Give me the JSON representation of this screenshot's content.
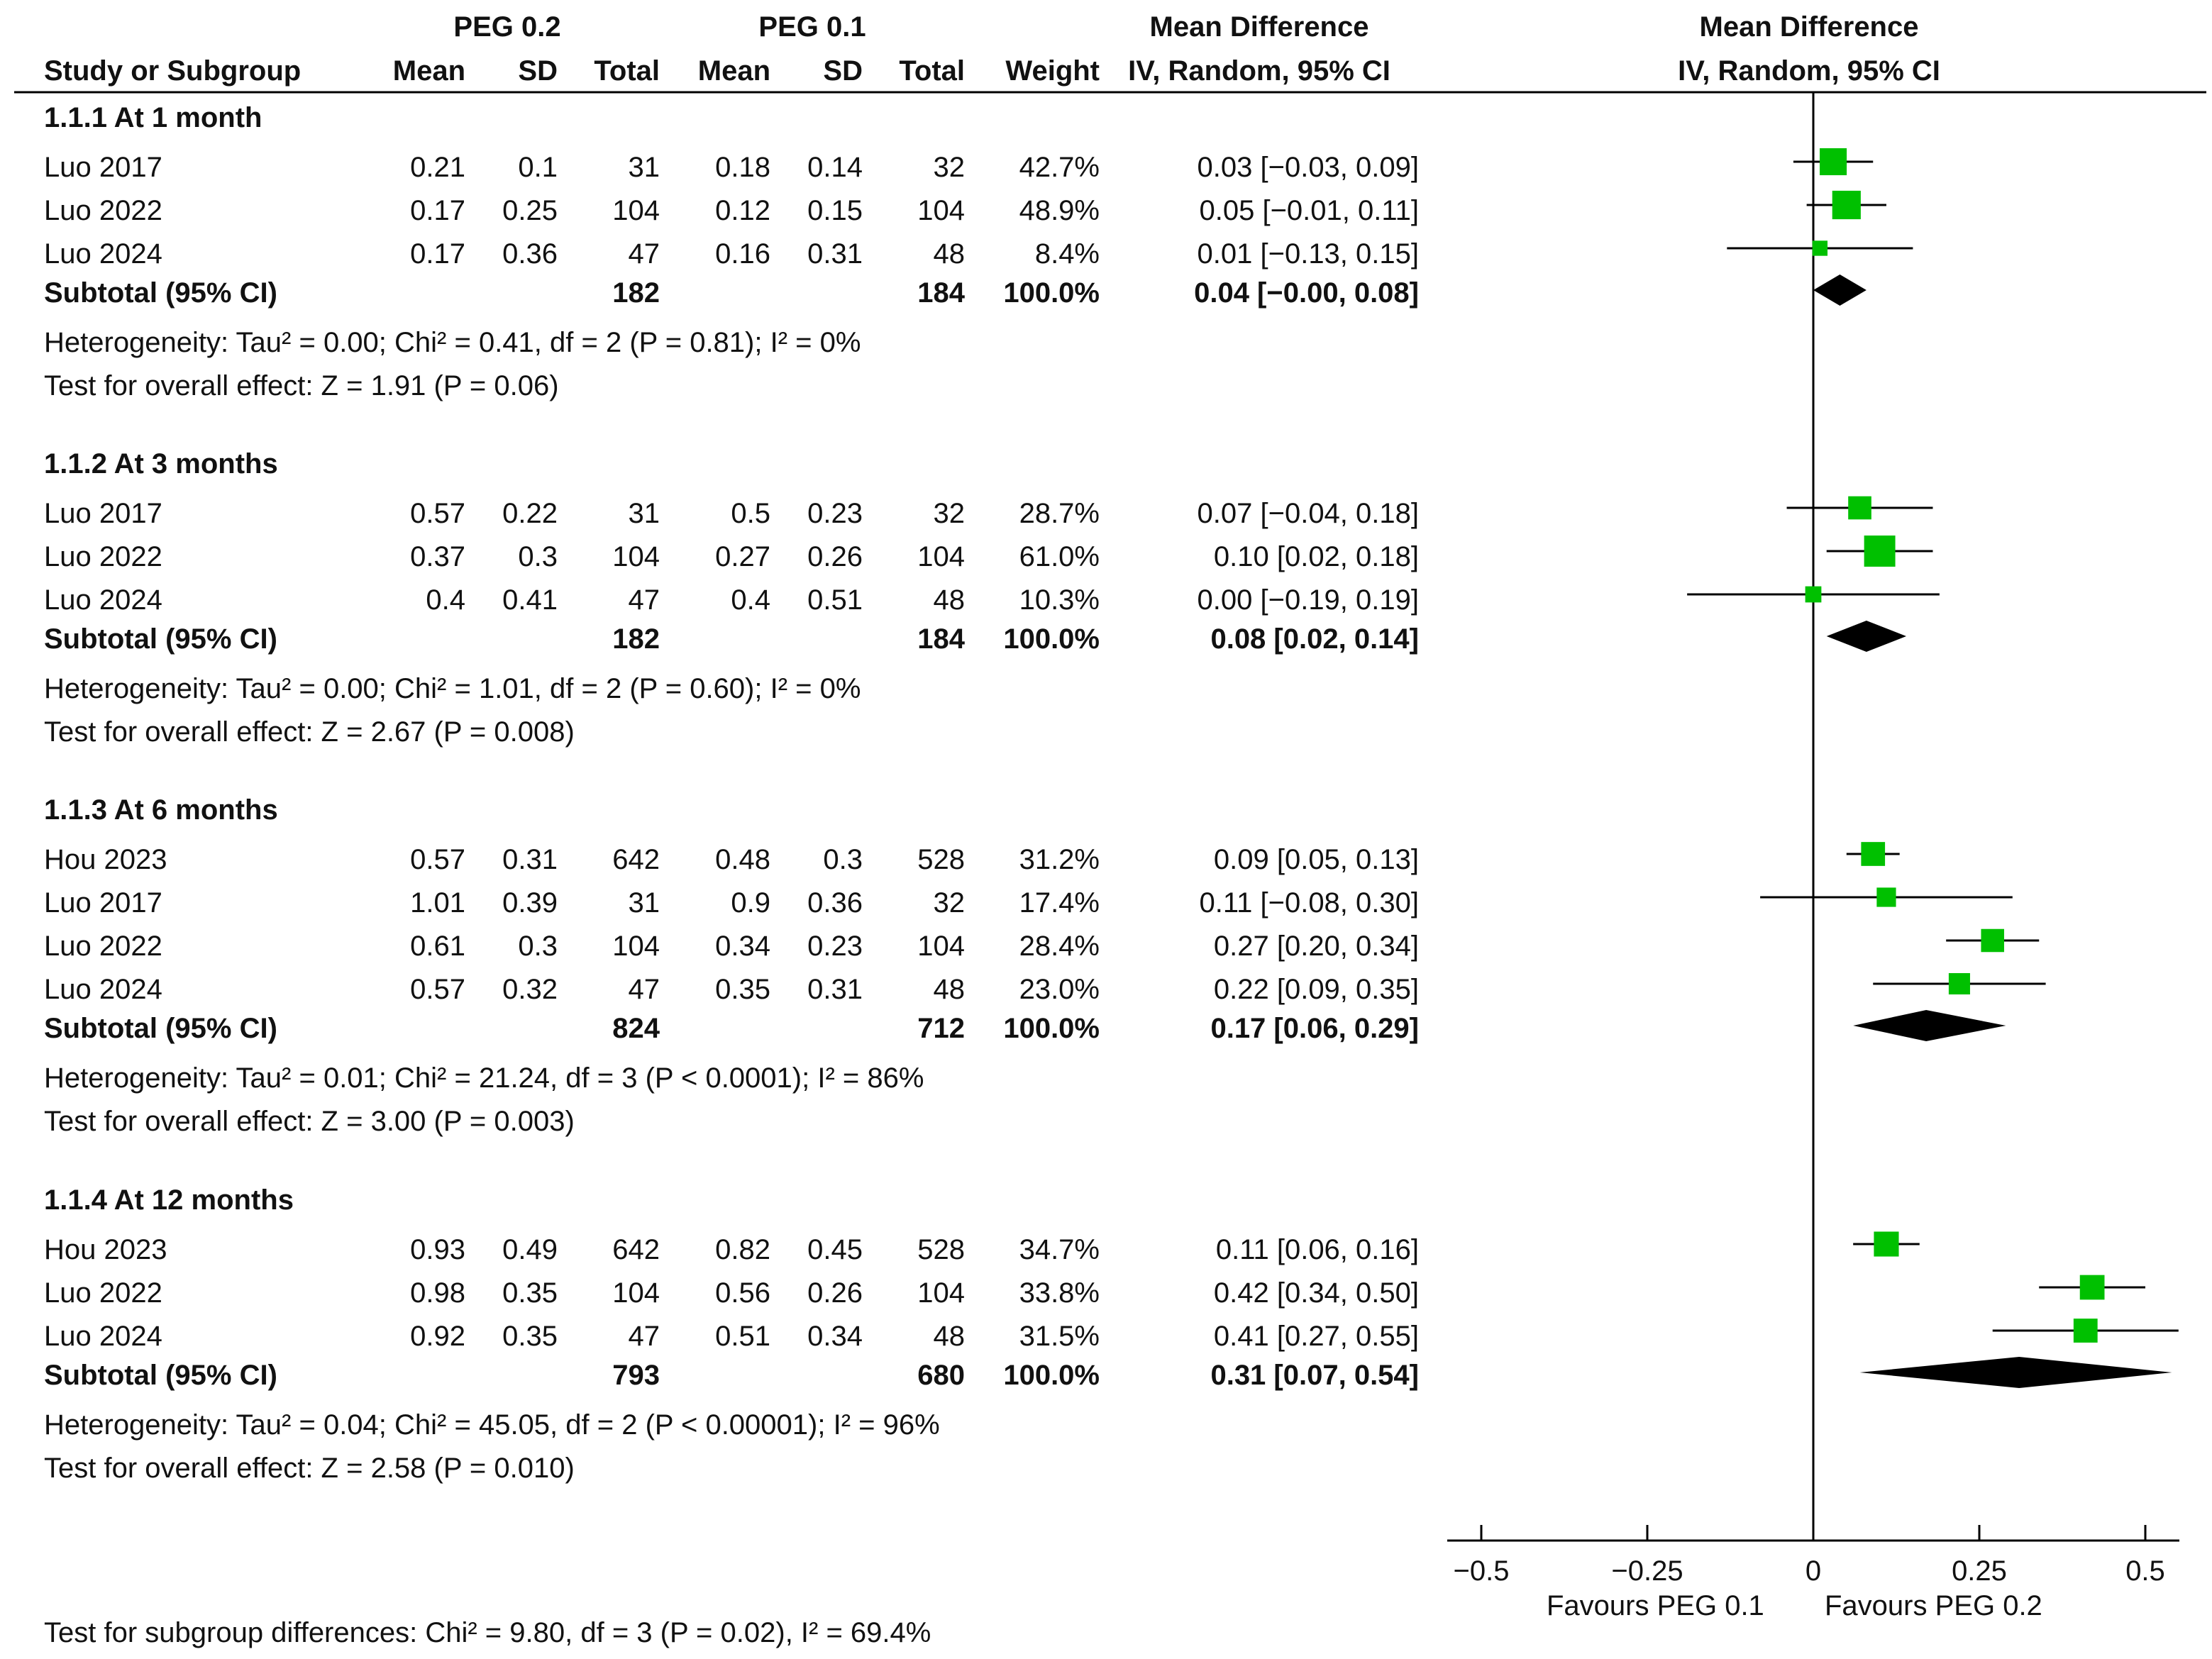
{
  "header": {
    "group_a": "PEG 0.2",
    "group_b": "PEG 0.1",
    "md_title_table": "Mean Difference",
    "md_method_table": "IV, Random, 95% CI",
    "md_title_plot": "Mean Difference",
    "md_method_plot": "IV, Random, 95% CI",
    "col_study": "Study or Subgroup",
    "col_mean_a": "Mean",
    "col_sd_a": "SD",
    "col_total_a": "Total",
    "col_mean_b": "Mean",
    "col_sd_b": "SD",
    "col_total_b": "Total",
    "col_weight": "Weight"
  },
  "subgroups": [
    {
      "title": "1.1.1 At 1 month",
      "rows": [
        {
          "study": "Luo 2017",
          "mean_a": "0.21",
          "sd_a": "0.1",
          "total_a": "31",
          "mean_b": "0.18",
          "sd_b": "0.14",
          "total_b": "32",
          "weight": "42.7%",
          "ci_text": "0.03 [−0.03, 0.09]"
        },
        {
          "study": "Luo 2022",
          "mean_a": "0.17",
          "sd_a": "0.25",
          "total_a": "104",
          "mean_b": "0.12",
          "sd_b": "0.15",
          "total_b": "104",
          "weight": "48.9%",
          "ci_text": "0.05 [−0.01, 0.11]"
        },
        {
          "study": "Luo 2024",
          "mean_a": "0.17",
          "sd_a": "0.36",
          "total_a": "47",
          "mean_b": "0.16",
          "sd_b": "0.31",
          "total_b": "48",
          "weight": "8.4%",
          "ci_text": "0.01 [−0.13, 0.15]"
        }
      ],
      "subtotal": {
        "label": "Subtotal (95% CI)",
        "total_a": "182",
        "total_b": "184",
        "weight": "100.0%",
        "ci_text": "0.04 [−0.00, 0.08]"
      },
      "heterogeneity": "Heterogeneity: Tau² = 0.00; Chi² = 0.41, df = 2 (P = 0.81); I² = 0%",
      "overall": "Test for overall effect: Z = 1.91 (P = 0.06)"
    },
    {
      "title": "1.1.2 At 3 months",
      "rows": [
        {
          "study": "Luo 2017",
          "mean_a": "0.57",
          "sd_a": "0.22",
          "total_a": "31",
          "mean_b": "0.5",
          "sd_b": "0.23",
          "total_b": "32",
          "weight": "28.7%",
          "ci_text": "0.07 [−0.04, 0.18]"
        },
        {
          "study": "Luo 2022",
          "mean_a": "0.37",
          "sd_a": "0.3",
          "total_a": "104",
          "mean_b": "0.27",
          "sd_b": "0.26",
          "total_b": "104",
          "weight": "61.0%",
          "ci_text": "0.10 [0.02, 0.18]"
        },
        {
          "study": "Luo 2024",
          "mean_a": "0.4",
          "sd_a": "0.41",
          "total_a": "47",
          "mean_b": "0.4",
          "sd_b": "0.51",
          "total_b": "48",
          "weight": "10.3%",
          "ci_text": "0.00 [−0.19, 0.19]"
        }
      ],
      "subtotal": {
        "label": "Subtotal (95% CI)",
        "total_a": "182",
        "total_b": "184",
        "weight": "100.0%",
        "ci_text": "0.08 [0.02, 0.14]"
      },
      "heterogeneity": "Heterogeneity: Tau² = 0.00; Chi² = 1.01, df = 2 (P = 0.60); I² = 0%",
      "overall": "Test for overall effect: Z = 2.67 (P = 0.008)"
    },
    {
      "title": "1.1.3 At 6 months",
      "rows": [
        {
          "study": "Hou 2023",
          "mean_a": "0.57",
          "sd_a": "0.31",
          "total_a": "642",
          "mean_b": "0.48",
          "sd_b": "0.3",
          "total_b": "528",
          "weight": "31.2%",
          "ci_text": "0.09 [0.05, 0.13]"
        },
        {
          "study": "Luo 2017",
          "mean_a": "1.01",
          "sd_a": "0.39",
          "total_a": "31",
          "mean_b": "0.9",
          "sd_b": "0.36",
          "total_b": "32",
          "weight": "17.4%",
          "ci_text": "0.11 [−0.08, 0.30]"
        },
        {
          "study": "Luo 2022",
          "mean_a": "0.61",
          "sd_a": "0.3",
          "total_a": "104",
          "mean_b": "0.34",
          "sd_b": "0.23",
          "total_b": "104",
          "weight": "28.4%",
          "ci_text": "0.27 [0.20, 0.34]"
        },
        {
          "study": "Luo 2024",
          "mean_a": "0.57",
          "sd_a": "0.32",
          "total_a": "47",
          "mean_b": "0.35",
          "sd_b": "0.31",
          "total_b": "48",
          "weight": "23.0%",
          "ci_text": "0.22 [0.09, 0.35]"
        }
      ],
      "subtotal": {
        "label": "Subtotal (95% CI)",
        "total_a": "824",
        "total_b": "712",
        "weight": "100.0%",
        "ci_text": "0.17 [0.06, 0.29]"
      },
      "heterogeneity": "Heterogeneity: Tau² = 0.01; Chi² = 21.24, df = 3 (P < 0.0001); I² = 86%",
      "overall": "Test for overall effect: Z = 3.00 (P = 0.003)"
    },
    {
      "title": "1.1.4 At 12 months",
      "rows": [
        {
          "study": "Hou 2023",
          "mean_a": "0.93",
          "sd_a": "0.49",
          "total_a": "642",
          "mean_b": "0.82",
          "sd_b": "0.45",
          "total_b": "528",
          "weight": "34.7%",
          "ci_text": "0.11 [0.06, 0.16]"
        },
        {
          "study": "Luo 2022",
          "mean_a": "0.98",
          "sd_a": "0.35",
          "total_a": "104",
          "mean_b": "0.56",
          "sd_b": "0.26",
          "total_b": "104",
          "weight": "33.8%",
          "ci_text": "0.42 [0.34, 0.50]"
        },
        {
          "study": "Luo 2024",
          "mean_a": "0.92",
          "sd_a": "0.35",
          "total_a": "47",
          "mean_b": "0.51",
          "sd_b": "0.34",
          "total_b": "48",
          "weight": "31.5%",
          "ci_text": "0.41 [0.27, 0.55]"
        }
      ],
      "subtotal": {
        "label": "Subtotal (95% CI)",
        "total_a": "793",
        "total_b": "680",
        "weight": "100.0%",
        "ci_text": "0.31 [0.07, 0.54]"
      },
      "heterogeneity": "Heterogeneity: Tau² = 0.04; Chi² = 45.05, df = 2 (P < 0.00001); I² = 96%",
      "overall": "Test for overall effect: Z = 2.58 (P = 0.010)"
    }
  ],
  "subgroup_test": "Test for subgroup differences: Chi² = 9.80, df = 3 (P = 0.02), I² = 69.4%",
  "axis": {
    "favours_left": "Favours PEG 0.1",
    "favours_right": "Favours PEG 0.2"
  },
  "colors": {
    "study_marker": "#00c000",
    "diamond": "#000000",
    "lines": "#000000"
  },
  "chart_data": {
    "type": "forest",
    "title": "Mean Difference IV, Random, 95% CI",
    "xlabel_left": "Favours PEG 0.1",
    "xlabel_right": "Favours PEG 0.2",
    "xlim": [
      -0.5,
      0.5
    ],
    "ticks": [
      -0.5,
      -0.25,
      0,
      0.25,
      0.5
    ],
    "tick_labels": [
      "−0.5",
      "−0.25",
      "0",
      "0.25",
      "0.5"
    ],
    "groups": [
      {
        "name": "1.1.1 At 1 month",
        "studies": [
          {
            "study": "Luo 2017",
            "md": 0.03,
            "lo": -0.03,
            "hi": 0.09,
            "weight": 42.7
          },
          {
            "study": "Luo 2022",
            "md": 0.05,
            "lo": -0.01,
            "hi": 0.11,
            "weight": 48.9
          },
          {
            "study": "Luo 2024",
            "md": 0.01,
            "lo": -0.13,
            "hi": 0.15,
            "weight": 8.4
          }
        ],
        "pooled": {
          "md": 0.04,
          "lo": -0.0,
          "hi": 0.08
        }
      },
      {
        "name": "1.1.2 At 3 months",
        "studies": [
          {
            "study": "Luo 2017",
            "md": 0.07,
            "lo": -0.04,
            "hi": 0.18,
            "weight": 28.7
          },
          {
            "study": "Luo 2022",
            "md": 0.1,
            "lo": 0.02,
            "hi": 0.18,
            "weight": 61.0
          },
          {
            "study": "Luo 2024",
            "md": 0.0,
            "lo": -0.19,
            "hi": 0.19,
            "weight": 10.3
          }
        ],
        "pooled": {
          "md": 0.08,
          "lo": 0.02,
          "hi": 0.14
        }
      },
      {
        "name": "1.1.3 At 6 months",
        "studies": [
          {
            "study": "Hou 2023",
            "md": 0.09,
            "lo": 0.05,
            "hi": 0.13,
            "weight": 31.2
          },
          {
            "study": "Luo 2017",
            "md": 0.11,
            "lo": -0.08,
            "hi": 0.3,
            "weight": 17.4
          },
          {
            "study": "Luo 2022",
            "md": 0.27,
            "lo": 0.2,
            "hi": 0.34,
            "weight": 28.4
          },
          {
            "study": "Luo 2024",
            "md": 0.22,
            "lo": 0.09,
            "hi": 0.35,
            "weight": 23.0
          }
        ],
        "pooled": {
          "md": 0.17,
          "lo": 0.06,
          "hi": 0.29
        }
      },
      {
        "name": "1.1.4 At 12 months",
        "studies": [
          {
            "study": "Hou 2023",
            "md": 0.11,
            "lo": 0.06,
            "hi": 0.16,
            "weight": 34.7
          },
          {
            "study": "Luo 2022",
            "md": 0.42,
            "lo": 0.34,
            "hi": 0.5,
            "weight": 33.8
          },
          {
            "study": "Luo 2024",
            "md": 0.41,
            "lo": 0.27,
            "hi": 0.55,
            "weight": 31.5
          }
        ],
        "pooled": {
          "md": 0.31,
          "lo": 0.07,
          "hi": 0.54
        }
      }
    ]
  }
}
